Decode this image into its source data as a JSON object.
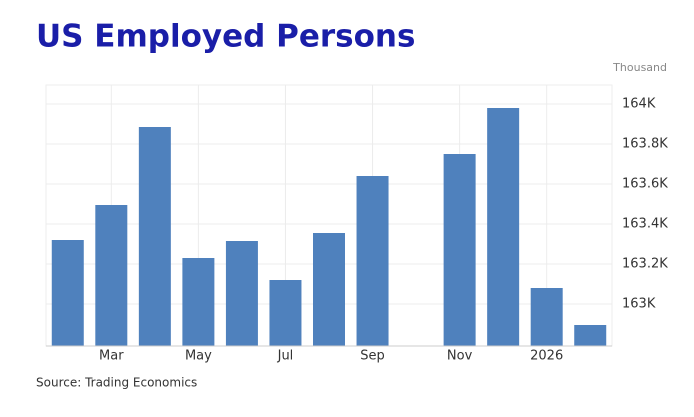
{
  "chart_data": {
    "type": "bar",
    "title": "US Employed Persons",
    "unit_label": "Thousand",
    "source": "Source: Trading Economics",
    "categories": [
      null,
      "Mar",
      null,
      "May",
      null,
      "Jul",
      null,
      "Sep",
      null,
      "Nov",
      null,
      "2026",
      null
    ],
    "values": [
      163320,
      163495,
      163885,
      163230,
      163315,
      163120,
      163355,
      163640,
      null,
      163750,
      163980,
      163080,
      162895
    ],
    "color": "#4f81bd",
    "ylim": [
      162790,
      164095
    ],
    "yticks": [
      {
        "value": 163000,
        "label": "163K"
      },
      {
        "value": 163200,
        "label": "163.2K"
      },
      {
        "value": 163400,
        "label": "163.4K"
      },
      {
        "value": 163600,
        "label": "163.6K"
      },
      {
        "value": 163800,
        "label": "163.8K"
      },
      {
        "value": 164000,
        "label": "164K"
      }
    ],
    "grid": true
  }
}
